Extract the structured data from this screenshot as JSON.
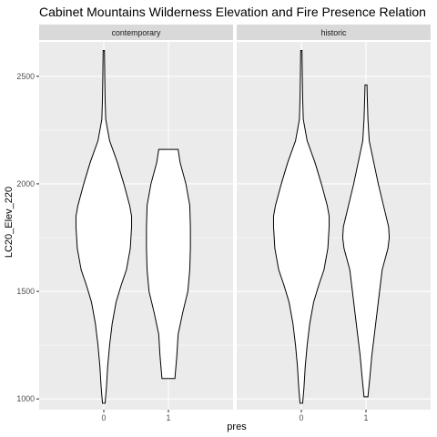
{
  "chart_data": {
    "type": "violin",
    "title": "Cabinet Mountains Wilderness Elevation and Fire Presence Relation",
    "xlabel": "pres",
    "ylabel": "LC20_Elev_220",
    "ylim": [
      950,
      2660
    ],
    "yticks": [
      1000,
      1500,
      2000,
      2500
    ],
    "categories": [
      "0",
      "1"
    ],
    "grid": true,
    "facets": [
      {
        "label": "contemporary",
        "violins": [
          {
            "x": "0",
            "profile": [
              {
                "y": 980,
                "hw": 0.02
              },
              {
                "y": 1050,
                "hw": 0.04
              },
              {
                "y": 1150,
                "hw": 0.06
              },
              {
                "y": 1250,
                "hw": 0.09
              },
              {
                "y": 1350,
                "hw": 0.13
              },
              {
                "y": 1450,
                "hw": 0.19
              },
              {
                "y": 1530,
                "hw": 0.27
              },
              {
                "y": 1600,
                "hw": 0.35
              },
              {
                "y": 1700,
                "hw": 0.41
              },
              {
                "y": 1800,
                "hw": 0.43
              },
              {
                "y": 1850,
                "hw": 0.43
              },
              {
                "y": 1900,
                "hw": 0.4
              },
              {
                "y": 2000,
                "hw": 0.31
              },
              {
                "y": 2100,
                "hw": 0.21
              },
              {
                "y": 2200,
                "hw": 0.09
              },
              {
                "y": 2300,
                "hw": 0.03
              },
              {
                "y": 2400,
                "hw": 0.02
              },
              {
                "y": 2500,
                "hw": 0.015
              },
              {
                "y": 2620,
                "hw": 0.01
              }
            ]
          },
          {
            "x": "1",
            "profile": [
              {
                "y": 1095,
                "hw": 0.1
              },
              {
                "y": 1200,
                "hw": 0.13
              },
              {
                "y": 1300,
                "hw": 0.15
              },
              {
                "y": 1400,
                "hw": 0.22
              },
              {
                "y": 1500,
                "hw": 0.3
              },
              {
                "y": 1600,
                "hw": 0.33
              },
              {
                "y": 1700,
                "hw": 0.34
              },
              {
                "y": 1800,
                "hw": 0.34
              },
              {
                "y": 1900,
                "hw": 0.33
              },
              {
                "y": 2000,
                "hw": 0.27
              },
              {
                "y": 2100,
                "hw": 0.18
              },
              {
                "y": 2160,
                "hw": 0.15
              }
            ]
          }
        ]
      },
      {
        "label": "historic",
        "violins": [
          {
            "x": "0",
            "profile": [
              {
                "y": 980,
                "hw": 0.02
              },
              {
                "y": 1050,
                "hw": 0.04
              },
              {
                "y": 1150,
                "hw": 0.06
              },
              {
                "y": 1250,
                "hw": 0.09
              },
              {
                "y": 1350,
                "hw": 0.13
              },
              {
                "y": 1450,
                "hw": 0.19
              },
              {
                "y": 1530,
                "hw": 0.27
              },
              {
                "y": 1600,
                "hw": 0.35
              },
              {
                "y": 1700,
                "hw": 0.41
              },
              {
                "y": 1800,
                "hw": 0.43
              },
              {
                "y": 1850,
                "hw": 0.43
              },
              {
                "y": 1900,
                "hw": 0.4
              },
              {
                "y": 2000,
                "hw": 0.31
              },
              {
                "y": 2100,
                "hw": 0.21
              },
              {
                "y": 2200,
                "hw": 0.09
              },
              {
                "y": 2300,
                "hw": 0.03
              },
              {
                "y": 2400,
                "hw": 0.02
              },
              {
                "y": 2500,
                "hw": 0.015
              },
              {
                "y": 2620,
                "hw": 0.01
              }
            ]
          },
          {
            "x": "1",
            "profile": [
              {
                "y": 1010,
                "hw": 0.03
              },
              {
                "y": 1100,
                "hw": 0.06
              },
              {
                "y": 1200,
                "hw": 0.09
              },
              {
                "y": 1300,
                "hw": 0.13
              },
              {
                "y": 1400,
                "hw": 0.17
              },
              {
                "y": 1500,
                "hw": 0.21
              },
              {
                "y": 1600,
                "hw": 0.25
              },
              {
                "y": 1700,
                "hw": 0.34
              },
              {
                "y": 1750,
                "hw": 0.36
              },
              {
                "y": 1800,
                "hw": 0.35
              },
              {
                "y": 1900,
                "hw": 0.27
              },
              {
                "y": 2000,
                "hw": 0.19
              },
              {
                "y": 2100,
                "hw": 0.12
              },
              {
                "y": 2200,
                "hw": 0.05
              },
              {
                "y": 2300,
                "hw": 0.03
              },
              {
                "y": 2400,
                "hw": 0.02
              },
              {
                "y": 2460,
                "hw": 0.015
              }
            ]
          }
        ]
      }
    ]
  }
}
